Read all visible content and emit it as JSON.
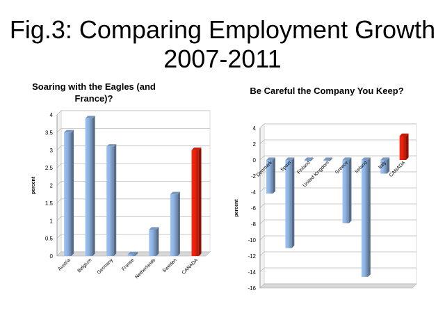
{
  "slide": {
    "title_line1": "Fig.3: Comparing Employment Growth",
    "title_line2": "2007-2011"
  },
  "chart_data": [
    {
      "type": "bar",
      "title": "Soaring with the Eagles (and France)?",
      "ylabel": "percent",
      "ylim": [
        0,
        4
      ],
      "yticks": [
        0,
        0.5,
        1,
        1.5,
        2,
        2.5,
        3,
        3.5,
        4
      ],
      "categories": [
        "Austria",
        "Belgium",
        "Germany",
        "France",
        "Netherlands",
        "Sweden",
        "CANADA"
      ],
      "values": [
        3.5,
        3.9,
        3.1,
        0.05,
        0.75,
        1.75,
        3.0
      ],
      "colors": [
        "#8fb4e3",
        "#8fb4e3",
        "#8fb4e3",
        "#8fb4e3",
        "#8fb4e3",
        "#8fb4e3",
        "#e8210c"
      ],
      "grid": true
    },
    {
      "type": "bar",
      "title": "Be Careful the Company You Keep?",
      "ylabel": "percent",
      "ylim": [
        -16,
        4
      ],
      "yticks": [
        4,
        2,
        0,
        -2,
        -4,
        -6,
        -8,
        -10,
        -12,
        -14,
        -16
      ],
      "categories": [
        "Denmark",
        "Spain",
        "Finland",
        "United Kingdom",
        "Greece",
        "Ireland",
        "Italy",
        "CANADA"
      ],
      "values": [
        -4.2,
        -11.0,
        -0.1,
        -0.1,
        -7.9,
        -14.6,
        -1.7,
        3.0
      ],
      "colors": [
        "#8fb4e3",
        "#8fb4e3",
        "#8fb4e3",
        "#8fb4e3",
        "#8fb4e3",
        "#8fb4e3",
        "#8fb4e3",
        "#e8210c"
      ],
      "grid": true
    }
  ]
}
